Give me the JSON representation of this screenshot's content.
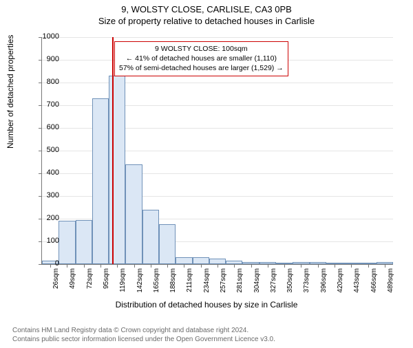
{
  "title_line1": "9, WOLSTY CLOSE, CARLISLE, CA3 0PB",
  "title_line2": "Size of property relative to detached houses in Carlisle",
  "ylabel": "Number of detached properties",
  "xlabel": "Distribution of detached houses by size in Carlisle",
  "footer_line1": "Contains HM Land Registry data © Crown copyright and database right 2024.",
  "footer_line2": "Contains public sector information licensed under the Open Government Licence v3.0.",
  "chart": {
    "type": "histogram",
    "ylim": [
      0,
      1000
    ],
    "ytick_step": 100,
    "background_color": "#ffffff",
    "grid_color": "#e5e5e5",
    "axis_color": "#777777",
    "bar_fill": "#dbe7f5",
    "bar_border": "#6f91b8",
    "bar_border_width": 1,
    "marker_color": "#cc0000",
    "marker_width": 2,
    "marker_x_value": 100,
    "x_start": 14.5,
    "x_step": 23,
    "x_labels": [
      "26sqm",
      "49sqm",
      "72sqm",
      "95sqm",
      "119sqm",
      "142sqm",
      "165sqm",
      "188sqm",
      "211sqm",
      "234sqm",
      "257sqm",
      "281sqm",
      "304sqm",
      "327sqm",
      "350sqm",
      "373sqm",
      "396sqm",
      "420sqm",
      "443sqm",
      "466sqm",
      "489sqm"
    ],
    "values": [
      15,
      190,
      195,
      730,
      830,
      440,
      240,
      175,
      30,
      30,
      25,
      15,
      10,
      8,
      0,
      10,
      8,
      0,
      0,
      5,
      8
    ],
    "label_fontsize": 11,
    "tick_fontsize": 10
  },
  "annotation": {
    "border_color": "#cc0000",
    "border_width": 1,
    "line1": "9 WOLSTY CLOSE: 100sqm",
    "line2": "← 41% of detached houses are smaller (1,110)",
    "line3": "57% of semi-detached houses are larger (1,529) →"
  }
}
